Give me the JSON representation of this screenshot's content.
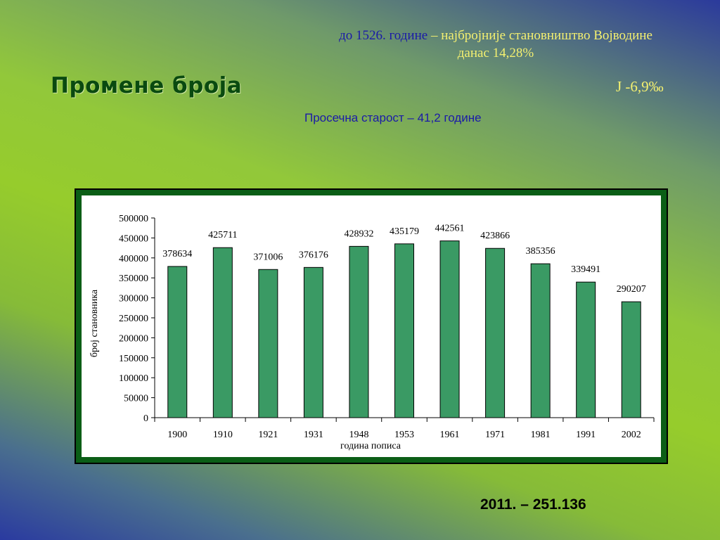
{
  "slide": {
    "title": "Промене броја",
    "note1_blue_part": "до 1526. године",
    "note1_yellow_part": " – најбројније становништво Војводине",
    "note1_line2": "данас 14,28%",
    "note2": "Ј -6,9‰",
    "note3": "Просечна старост – 41,2 године",
    "bottom_note": "2011. – 251.136"
  },
  "colors": {
    "bar": "#3a9a64",
    "frame": "#0b5e16",
    "title": "#0a4a10",
    "blue_text": "#1a1aa8",
    "yellow_text": "#f4f070"
  },
  "chart_data": {
    "type": "bar",
    "categories": [
      "1900",
      "1910",
      "1921",
      "1931",
      "1948",
      "1953",
      "1961",
      "1971",
      "1981",
      "1991",
      "2002"
    ],
    "values": [
      378634,
      425711,
      371006,
      376176,
      428932,
      435179,
      442561,
      423866,
      385356,
      339491,
      290207
    ],
    "data_labels": [
      "378634",
      "425711",
      "371006",
      "376176",
      "428932",
      "435179",
      "442561",
      "423866",
      "385356",
      "339491",
      "290207"
    ],
    "xlabel": "година пописа",
    "ylabel": "број становника",
    "ylim": [
      0,
      500000
    ],
    "yticks": [
      0,
      50000,
      100000,
      150000,
      200000,
      250000,
      300000,
      350000,
      400000,
      450000,
      500000
    ],
    "ytick_labels": [
      "0",
      "50000",
      "100000",
      "150000",
      "200000",
      "250000",
      "300000",
      "350000",
      "400000",
      "450000",
      "500000"
    ],
    "grid": false,
    "legend": "none"
  }
}
